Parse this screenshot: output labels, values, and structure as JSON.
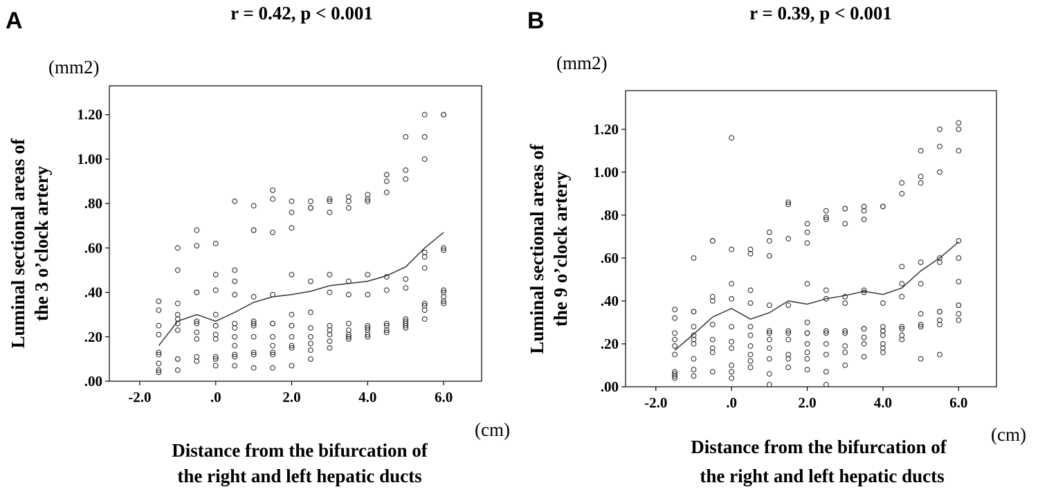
{
  "chart_data": [
    {
      "type": "scatter",
      "panel_label": "A",
      "title": "r = 0.42, p < 0.001",
      "y_unit": "(mm2)",
      "x_unit": "(cm)",
      "ylabel": [
        "Luminal sectional areas of",
        "the 3 o’clock artery"
      ],
      "xlabel": [
        "Distance from the bifurcation of",
        "the right and left hepatic ducts"
      ],
      "xlim": [
        -2.8,
        7.0
      ],
      "ylim": [
        0.0,
        1.33
      ],
      "x_ticks": [
        -2.0,
        0.0,
        2.0,
        4.0,
        6.0
      ],
      "x_tick_labels": [
        "-2.0",
        ".0",
        "2.0",
        "4.0",
        "6.0"
      ],
      "y_ticks": [
        0.0,
        0.2,
        0.4,
        0.6,
        0.8,
        1.0,
        1.2
      ],
      "y_tick_labels": [
        ".00",
        ".20",
        ".40",
        ".60",
        ".80",
        "1.00",
        "1.20"
      ],
      "grid": false,
      "points": {
        "x": [
          -1.5,
          -1.5,
          -1.5,
          -1.5,
          -1.5,
          -1.5,
          -1.5,
          -1.5,
          -1.5,
          -1.0,
          -1.0,
          -1.0,
          -1.0,
          -1.0,
          -1.0,
          -1.0,
          -1.0,
          -1.0,
          -1.0,
          -0.5,
          -0.5,
          -0.5,
          -0.5,
          -0.5,
          -0.5,
          -0.5,
          -0.5,
          -0.5,
          -0.5,
          0.0,
          0.0,
          0.0,
          0.0,
          0.0,
          0.0,
          0.0,
          0.0,
          0.0,
          0.0,
          0.0,
          0.5,
          0.5,
          0.5,
          0.5,
          0.5,
          0.5,
          0.5,
          0.5,
          0.5,
          0.5,
          0.5,
          1.0,
          1.0,
          1.0,
          1.0,
          1.0,
          1.0,
          1.0,
          1.0,
          1.0,
          1.0,
          1.0,
          1.5,
          1.5,
          1.5,
          1.5,
          1.5,
          1.5,
          1.5,
          1.5,
          1.5,
          1.5,
          1.5,
          2.0,
          2.0,
          2.0,
          2.0,
          2.0,
          2.0,
          2.0,
          2.0,
          2.0,
          2.0,
          2.0,
          2.5,
          2.5,
          2.5,
          2.5,
          2.5,
          2.5,
          2.5,
          2.5,
          2.5,
          2.5,
          3.0,
          3.0,
          3.0,
          3.0,
          3.0,
          3.0,
          3.0,
          3.0,
          3.0,
          3.0,
          3.5,
          3.5,
          3.5,
          3.5,
          3.5,
          3.5,
          3.5,
          3.5,
          3.5,
          3.5,
          4.0,
          4.0,
          4.0,
          4.0,
          4.0,
          4.0,
          4.0,
          4.0,
          4.0,
          4.0,
          4.5,
          4.5,
          4.5,
          4.5,
          4.5,
          4.5,
          4.5,
          4.5,
          4.5,
          5.0,
          5.0,
          5.0,
          5.0,
          5.0,
          5.0,
          5.0,
          5.0,
          5.0,
          5.0,
          5.5,
          5.5,
          5.5,
          5.5,
          5.5,
          5.5,
          5.5,
          5.5,
          5.5,
          5.5,
          6.0,
          6.0,
          6.0,
          6.0,
          6.0,
          6.0,
          6.0,
          6.0,
          6.0
        ],
        "y": [
          0.36,
          0.32,
          0.25,
          0.21,
          0.13,
          0.12,
          0.08,
          0.05,
          0.04,
          0.6,
          0.5,
          0.35,
          0.3,
          0.28,
          0.26,
          0.23,
          0.1,
          0.1,
          0.05,
          0.68,
          0.61,
          0.4,
          0.27,
          0.22,
          0.19,
          0.11,
          0.09,
          0.4,
          0.26,
          0.62,
          0.48,
          0.41,
          0.3,
          0.25,
          0.21,
          0.19,
          0.11,
          0.1,
          0.07,
          0.25,
          0.81,
          0.5,
          0.45,
          0.39,
          0.26,
          0.24,
          0.2,
          0.16,
          0.12,
          0.11,
          0.07,
          0.79,
          0.68,
          0.68,
          0.38,
          0.27,
          0.25,
          0.2,
          0.13,
          0.12,
          0.06,
          0.26,
          0.86,
          0.82,
          0.67,
          0.39,
          0.26,
          0.26,
          0.2,
          0.16,
          0.13,
          0.12,
          0.06,
          0.81,
          0.76,
          0.69,
          0.48,
          0.3,
          0.25,
          0.2,
          0.16,
          0.15,
          0.07,
          0.25,
          0.81,
          0.78,
          0.78,
          0.45,
          0.31,
          0.24,
          0.2,
          0.17,
          0.14,
          0.1,
          0.82,
          0.81,
          0.76,
          0.48,
          0.4,
          0.25,
          0.23,
          0.21,
          0.18,
          0.15,
          0.83,
          0.81,
          0.78,
          0.45,
          0.39,
          0.26,
          0.23,
          0.21,
          0.2,
          0.19,
          0.84,
          0.82,
          0.81,
          0.48,
          0.39,
          0.25,
          0.24,
          0.23,
          0.21,
          0.2,
          0.93,
          0.9,
          0.85,
          0.47,
          0.41,
          0.26,
          0.25,
          0.23,
          0.22,
          1.1,
          0.95,
          0.91,
          0.46,
          0.42,
          0.28,
          0.27,
          0.26,
          0.25,
          0.24,
          1.2,
          1.1,
          1.0,
          0.58,
          0.56,
          0.51,
          0.35,
          0.34,
          0.32,
          0.28,
          1.2,
          1.2,
          0.6,
          0.59,
          0.41,
          0.4,
          0.38,
          0.36,
          0.35
        ]
      },
      "fit_line": {
        "x": [
          -1.5,
          -1.0,
          -0.5,
          0.0,
          0.5,
          1.0,
          1.5,
          2.0,
          2.5,
          3.0,
          3.5,
          4.0,
          4.5,
          5.0,
          5.5,
          6.0
        ],
        "y": [
          0.16,
          0.27,
          0.3,
          0.27,
          0.31,
          0.355,
          0.38,
          0.39,
          0.405,
          0.43,
          0.44,
          0.45,
          0.475,
          0.515,
          0.6,
          0.67
        ]
      }
    },
    {
      "type": "scatter",
      "panel_label": "B",
      "title": "r = 0.39, p < 0.001",
      "y_unit": "(mm2)",
      "x_unit": "(cm)",
      "ylabel": [
        "Luminal sectional areas of",
        "the 9 o’clock artery"
      ],
      "xlabel": [
        "Distance from the bifurcation of",
        "the right and left hepatic ducts"
      ],
      "xlim": [
        -2.8,
        7.0
      ],
      "ylim": [
        0.0,
        1.38
      ],
      "x_ticks": [
        -2.0,
        0.0,
        2.0,
        4.0,
        6.0
      ],
      "x_tick_labels": [
        "-2.0",
        ".0",
        "2.0",
        "4.0",
        "6.0"
      ],
      "y_ticks": [
        0.0,
        0.2,
        0.4,
        0.6,
        0.8,
        1.0,
        1.2
      ],
      "y_tick_labels": [
        ".00",
        ".20",
        ".40",
        ".60",
        ".80",
        "1.00",
        "1.20"
      ],
      "grid": false,
      "points": {
        "x": [
          -1.5,
          -1.5,
          -1.5,
          -1.5,
          -1.5,
          -1.5,
          -1.5,
          -1.5,
          -1.5,
          -1.5,
          -1.0,
          -1.0,
          -1.0,
          -1.0,
          -1.0,
          -1.0,
          -1.0,
          -1.0,
          -1.0,
          -1.0,
          -0.5,
          -0.5,
          -0.5,
          -0.5,
          -0.5,
          -0.5,
          -0.5,
          -0.5,
          -0.5,
          0.0,
          0.0,
          0.0,
          0.0,
          0.0,
          0.0,
          0.0,
          0.0,
          0.0,
          0.0,
          0.5,
          0.5,
          0.5,
          0.5,
          0.5,
          0.5,
          0.5,
          0.5,
          0.5,
          0.5,
          1.0,
          1.0,
          1.0,
          1.0,
          1.0,
          1.0,
          1.0,
          1.0,
          1.0,
          1.0,
          1.0,
          1.5,
          1.5,
          1.5,
          1.5,
          1.5,
          1.5,
          1.5,
          1.5,
          1.5,
          1.5,
          2.0,
          2.0,
          2.0,
          2.0,
          2.0,
          2.0,
          2.0,
          2.0,
          2.0,
          2.0,
          2.0,
          2.5,
          2.5,
          2.5,
          2.5,
          2.5,
          2.5,
          2.5,
          2.5,
          2.5,
          2.5,
          2.5,
          3.0,
          3.0,
          3.0,
          3.0,
          3.0,
          3.0,
          3.0,
          3.0,
          3.0,
          3.0,
          3.5,
          3.5,
          3.5,
          3.5,
          3.5,
          3.5,
          3.5,
          3.5,
          3.5,
          3.5,
          4.0,
          4.0,
          4.0,
          4.0,
          4.0,
          4.0,
          4.0,
          4.0,
          4.0,
          4.0,
          4.5,
          4.5,
          4.5,
          4.5,
          4.5,
          4.5,
          4.5,
          4.5,
          4.5,
          5.0,
          5.0,
          5.0,
          5.0,
          5.0,
          5.0,
          5.0,
          5.0,
          5.0,
          5.5,
          5.5,
          5.5,
          5.5,
          5.5,
          5.5,
          5.5,
          5.5,
          5.5,
          5.5,
          6.0,
          6.0,
          6.0,
          6.0,
          6.0,
          6.0,
          6.0,
          6.0,
          6.0,
          6.0
        ],
        "y": [
          0.36,
          0.32,
          0.25,
          0.22,
          0.19,
          0.15,
          0.07,
          0.06,
          0.05,
          0.04,
          0.6,
          0.35,
          0.35,
          0.28,
          0.24,
          0.22,
          0.2,
          0.13,
          0.08,
          0.05,
          0.68,
          0.68,
          0.42,
          0.4,
          0.29,
          0.22,
          0.18,
          0.16,
          0.07,
          1.16,
          0.64,
          0.48,
          0.41,
          0.28,
          0.21,
          0.18,
          0.1,
          0.07,
          0.04,
          0.64,
          0.62,
          0.45,
          0.39,
          0.28,
          0.24,
          0.19,
          0.15,
          0.12,
          0.09,
          0.72,
          0.68,
          0.61,
          0.38,
          0.26,
          0.25,
          0.22,
          0.18,
          0.13,
          0.06,
          0.01,
          0.86,
          0.85,
          0.69,
          0.38,
          0.26,
          0.25,
          0.22,
          0.15,
          0.13,
          0.09,
          0.76,
          0.72,
          0.67,
          0.48,
          0.3,
          0.25,
          0.25,
          0.2,
          0.16,
          0.13,
          0.08,
          0.82,
          0.79,
          0.78,
          0.45,
          0.41,
          0.26,
          0.25,
          0.2,
          0.15,
          0.07,
          0.01,
          0.83,
          0.83,
          0.76,
          0.42,
          0.39,
          0.26,
          0.25,
          0.19,
          0.16,
          0.1,
          0.84,
          0.82,
          0.78,
          0.45,
          0.44,
          0.27,
          0.27,
          0.23,
          0.2,
          0.14,
          0.84,
          0.84,
          0.39,
          0.28,
          0.26,
          0.26,
          0.24,
          0.2,
          0.18,
          0.16,
          0.95,
          0.9,
          0.56,
          0.48,
          0.42,
          0.28,
          0.27,
          0.24,
          0.22,
          1.1,
          0.98,
          0.95,
          0.58,
          0.48,
          0.34,
          0.29,
          0.28,
          0.13,
          1.2,
          1.12,
          1.0,
          0.6,
          0.58,
          0.35,
          0.35,
          0.31,
          0.29,
          0.15,
          1.23,
          1.2,
          1.1,
          0.68,
          0.6,
          0.49,
          0.38,
          0.38,
          0.34,
          0.31
        ]
      },
      "fit_line": {
        "x": [
          -1.5,
          -1.0,
          -0.5,
          0.0,
          0.5,
          1.0,
          1.5,
          2.0,
          2.5,
          3.0,
          3.5,
          4.0,
          4.5,
          5.0,
          5.5,
          6.0
        ],
        "y": [
          0.17,
          0.245,
          0.325,
          0.365,
          0.315,
          0.345,
          0.4,
          0.385,
          0.41,
          0.425,
          0.445,
          0.43,
          0.46,
          0.54,
          0.6,
          0.675
        ]
      }
    }
  ]
}
